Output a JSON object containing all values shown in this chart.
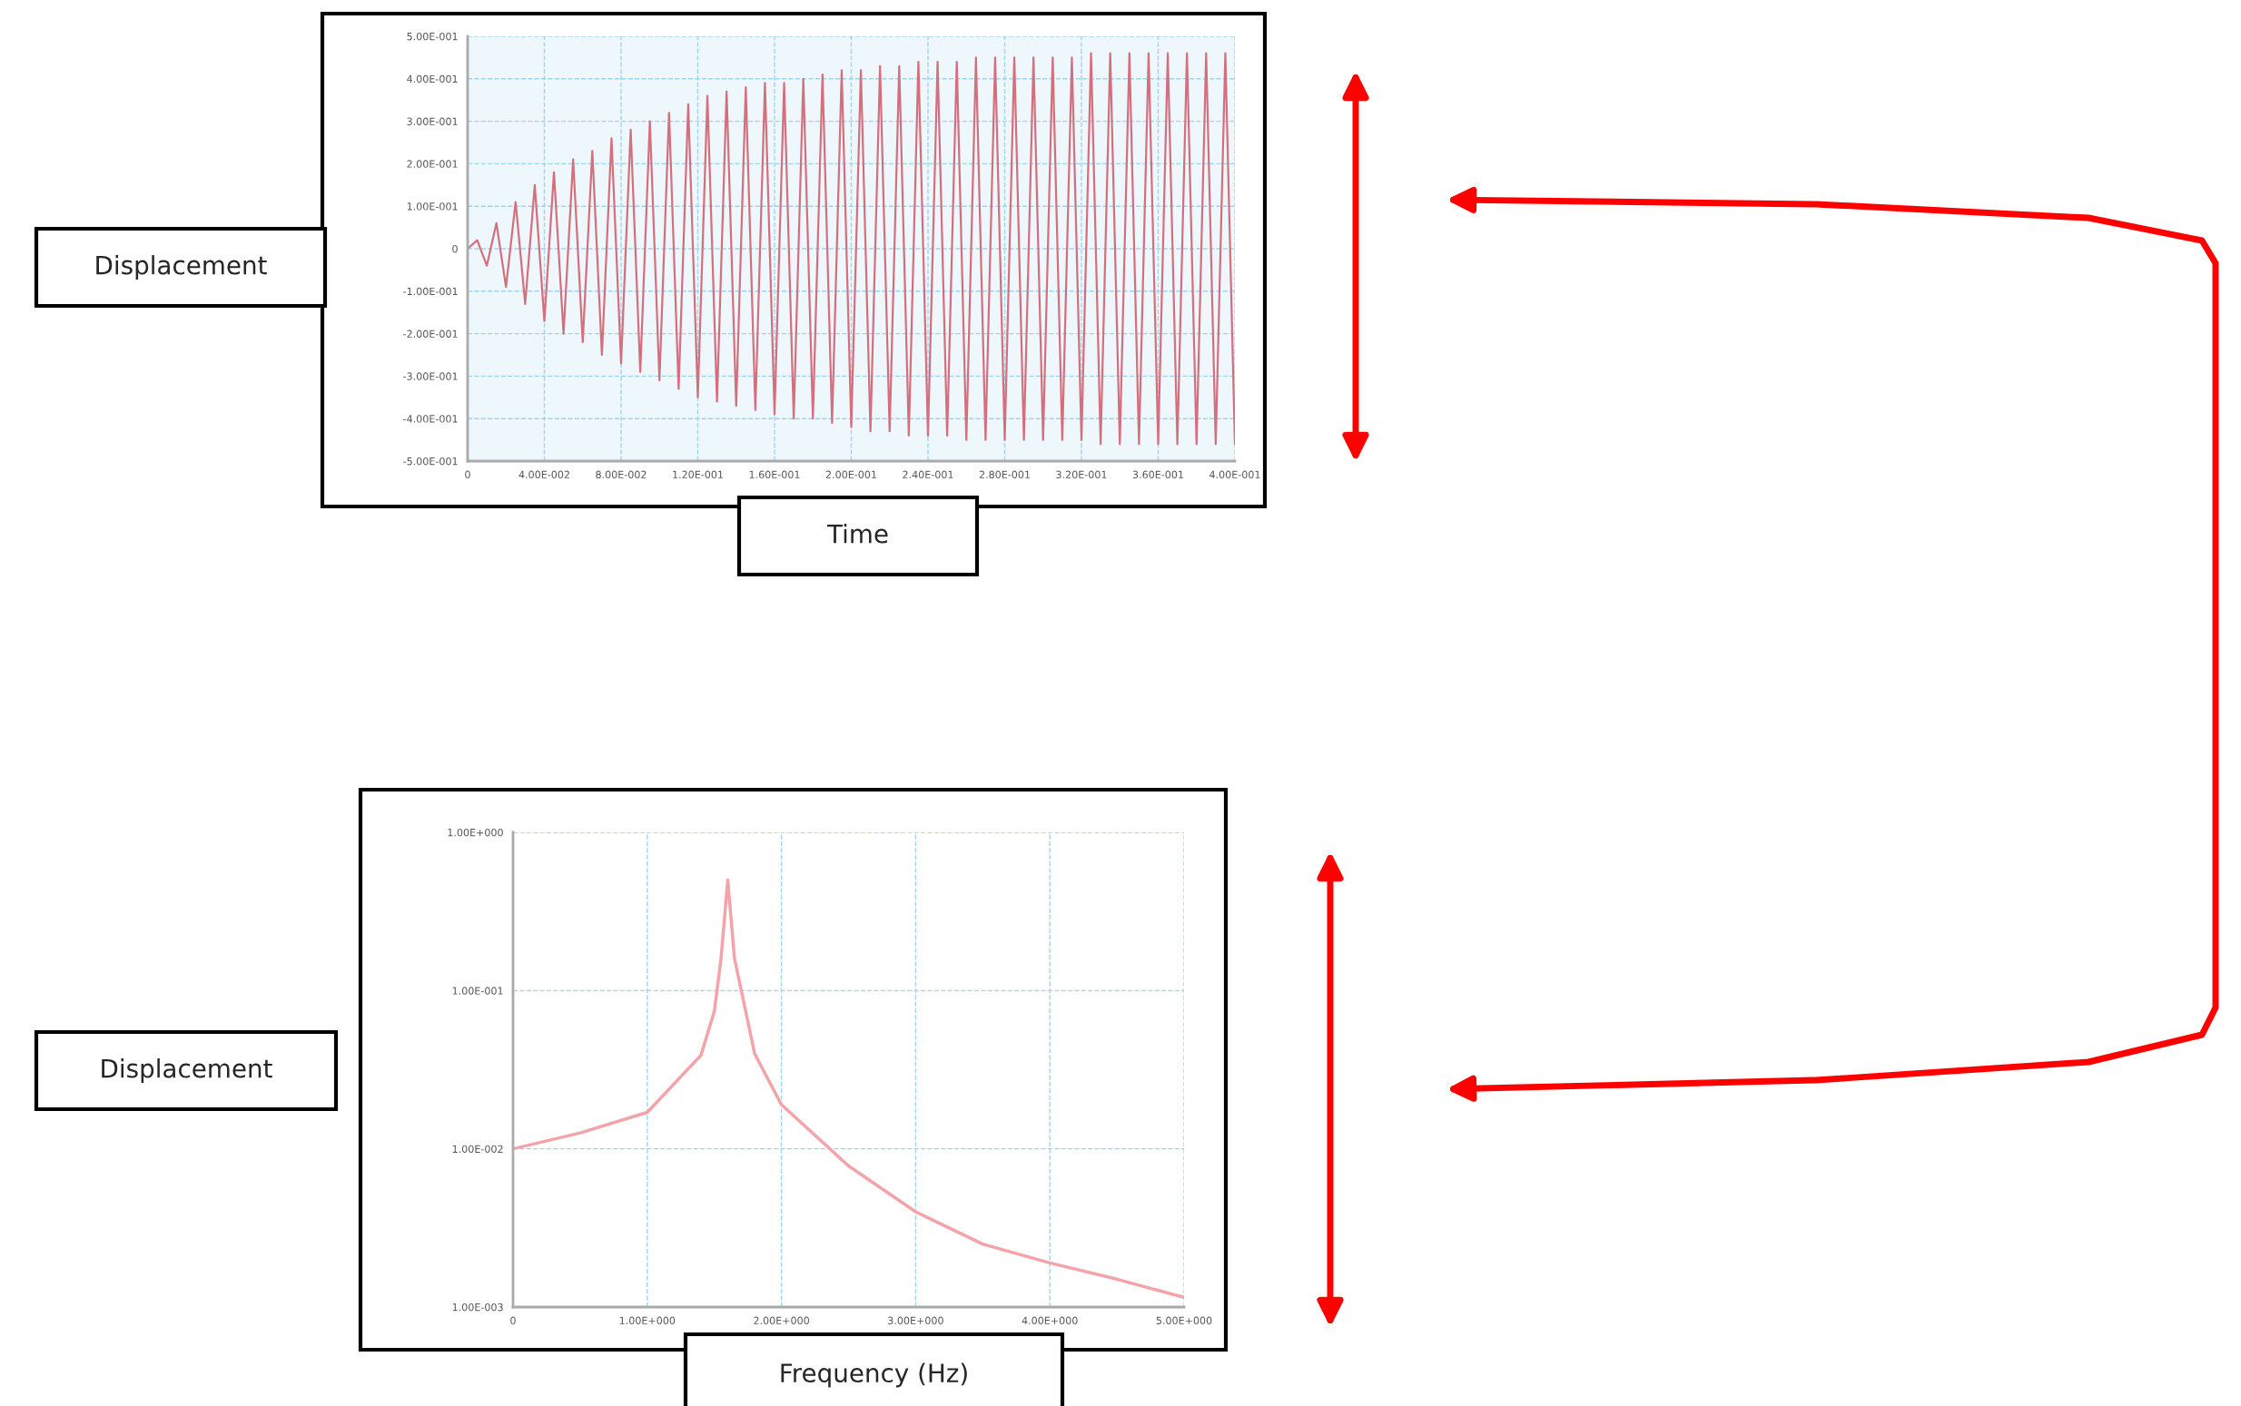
{
  "chart_data": [
    {
      "type": "line",
      "xlabel": "Time",
      "ylabel": "Displacement",
      "series": [
        {
          "color": "#d4707e",
          "x": [
            0,
            0.005,
            0.01,
            0.015,
            0.02,
            0.025,
            0.03,
            0.035,
            0.04,
            0.045,
            0.05,
            0.055,
            0.06,
            0.065,
            0.07,
            0.075,
            0.08,
            0.085,
            0.09,
            0.095,
            0.1,
            0.105,
            0.11,
            0.115,
            0.12,
            0.125,
            0.13,
            0.135,
            0.14,
            0.145,
            0.15,
            0.155,
            0.16,
            0.165,
            0.17,
            0.175,
            0.18,
            0.185,
            0.19,
            0.195,
            0.2,
            0.205,
            0.21,
            0.215,
            0.22,
            0.225,
            0.23,
            0.235,
            0.24,
            0.245,
            0.25,
            0.255,
            0.26,
            0.265,
            0.27,
            0.275,
            0.28,
            0.285,
            0.29,
            0.295,
            0.3,
            0.305,
            0.31,
            0.315,
            0.32,
            0.325,
            0.33,
            0.335,
            0.34,
            0.345,
            0.35,
            0.355,
            0.36,
            0.365,
            0.37,
            0.375,
            0.38,
            0.385,
            0.39,
            0.395,
            0.4
          ],
          "values": [
            0,
            0.02,
            -0.04,
            0.06,
            -0.09,
            0.11,
            -0.13,
            0.15,
            -0.17,
            0.18,
            -0.2,
            0.21,
            -0.22,
            0.23,
            -0.25,
            0.26,
            -0.27,
            0.28,
            -0.29,
            0.3,
            -0.31,
            0.32,
            -0.33,
            0.34,
            -0.35,
            0.36,
            -0.36,
            0.37,
            -0.37,
            0.38,
            -0.38,
            0.39,
            -0.39,
            0.39,
            -0.4,
            0.4,
            -0.4,
            0.41,
            -0.41,
            0.42,
            -0.42,
            0.42,
            -0.43,
            0.43,
            -0.43,
            0.43,
            -0.44,
            0.44,
            -0.44,
            0.44,
            -0.44,
            0.44,
            -0.45,
            0.45,
            -0.45,
            0.45,
            -0.45,
            0.45,
            -0.45,
            0.45,
            -0.45,
            0.45,
            -0.45,
            0.45,
            -0.45,
            0.46,
            -0.46,
            0.46,
            -0.46,
            0.46,
            -0.46,
            0.46,
            -0.46,
            0.46,
            -0.46,
            0.46,
            -0.46,
            0.46,
            -0.46,
            0.46,
            -0.46
          ]
        }
      ],
      "xlim": [
        0,
        0.4
      ],
      "ylim": [
        -0.5,
        0.5
      ],
      "xticks": [
        0,
        {
          "value": 0.04,
          "label": "4.00E-002"
        },
        {
          "value": 0.08,
          "label": "8.00E-002"
        },
        {
          "value": 0.12,
          "label": "1.20E-001"
        },
        {
          "value": 0.16,
          "label": "1.60E-001"
        },
        {
          "value": 0.2,
          "label": "2.00E-001"
        },
        {
          "value": 0.24,
          "label": "2.40E-001"
        },
        {
          "value": 0.28,
          "label": "2.80E-001"
        },
        {
          "value": 0.32,
          "label": "3.20E-001"
        },
        {
          "value": 0.36,
          "label": "3.60E-001"
        },
        {
          "value": 0.4,
          "label": "4.00E-001"
        }
      ],
      "yticks": [
        {
          "value": -0.5,
          "label": "-5.00E-001"
        },
        {
          "value": -0.4,
          "label": "-4.00E-001"
        },
        {
          "value": -0.3,
          "label": "-3.00E-001"
        },
        {
          "value": -0.2,
          "label": "-2.00E-001"
        },
        {
          "value": -0.1,
          "label": "-1.00E-001"
        },
        0,
        {
          "value": 0.1,
          "label": "1.00E-001"
        },
        {
          "value": 0.2,
          "label": "2.00E-001"
        },
        {
          "value": 0.3,
          "label": "3.00E-001"
        },
        {
          "value": 0.4,
          "label": "4.00E-001"
        },
        {
          "value": 0.5,
          "label": "5.00E-001"
        }
      ],
      "grid": true
    },
    {
      "type": "line",
      "xlabel": "Frequency (Hz)",
      "ylabel": "Displacement",
      "log": "y",
      "series": [
        {
          "color": "#f4a3a8",
          "x": [
            0,
            0.5,
            1,
            1.4,
            1.5,
            1.55,
            1.6,
            1.65,
            1.8,
            2,
            2.5,
            3,
            3.5,
            4,
            4.5,
            5
          ],
          "values": [
            0.01,
            0.0126,
            0.017,
            0.039,
            0.074,
            0.16,
            0.5,
            0.16,
            0.04,
            0.019,
            0.0078,
            0.004,
            0.0025,
            0.0019,
            0.0015,
            0.00115
          ]
        }
      ],
      "xlim": [
        0,
        5
      ],
      "ylim": [
        0.001,
        1
      ],
      "xticks": [
        0,
        {
          "value": 1,
          "label": "1.00E+000"
        },
        {
          "value": 2,
          "label": "2.00E+000"
        },
        {
          "value": 3,
          "label": "3.00E+000"
        },
        {
          "value": 4,
          "label": "4.00E+000"
        },
        {
          "value": 5,
          "label": "5.00E+000"
        }
      ],
      "yticks": [
        {
          "value": 0.001,
          "label": "1.00E-003"
        },
        {
          "value": 0.01,
          "label": "1.00E-002"
        },
        {
          "value": 0.1,
          "label": "1.00E-001"
        },
        {
          "value": 1,
          "label": "1.00E+000"
        }
      ],
      "grid": true
    }
  ]
}
